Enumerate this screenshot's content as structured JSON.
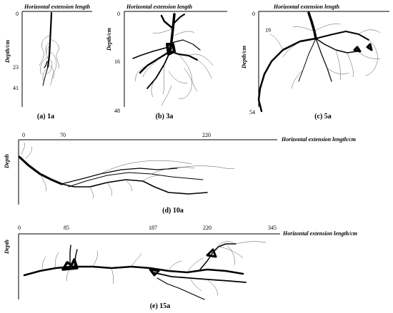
{
  "panels": [
    {
      "id": "a",
      "caption": "(a) 1a",
      "xlabel": "Horizontal extension length",
      "ylabel": "Depth/cm",
      "y_ticks": [
        "0",
        "23",
        "41"
      ]
    },
    {
      "id": "b",
      "caption": "(b) 3a",
      "xlabel": "Horizontal extension length",
      "ylabel": "Depth/cm",
      "y_ticks": [
        "0",
        "16",
        "48"
      ]
    },
    {
      "id": "c",
      "caption": "(c) 5a",
      "xlabel": "Horizontal extension length",
      "ylabel": "Depth/cm",
      "y_ticks": [
        "0",
        "19",
        "54"
      ]
    },
    {
      "id": "d",
      "caption": "(d) 10a",
      "xlabel": "Horizontal extension length/cm",
      "ylabel": "Depth",
      "x_ticks": [
        "0",
        "70",
        "220"
      ]
    },
    {
      "id": "e",
      "caption": "(e) 15a",
      "xlabel": "Horizontal extension length/cm",
      "ylabel": "Depth",
      "x_ticks": [
        "0",
        "85",
        "187",
        "220",
        "345"
      ]
    }
  ]
}
